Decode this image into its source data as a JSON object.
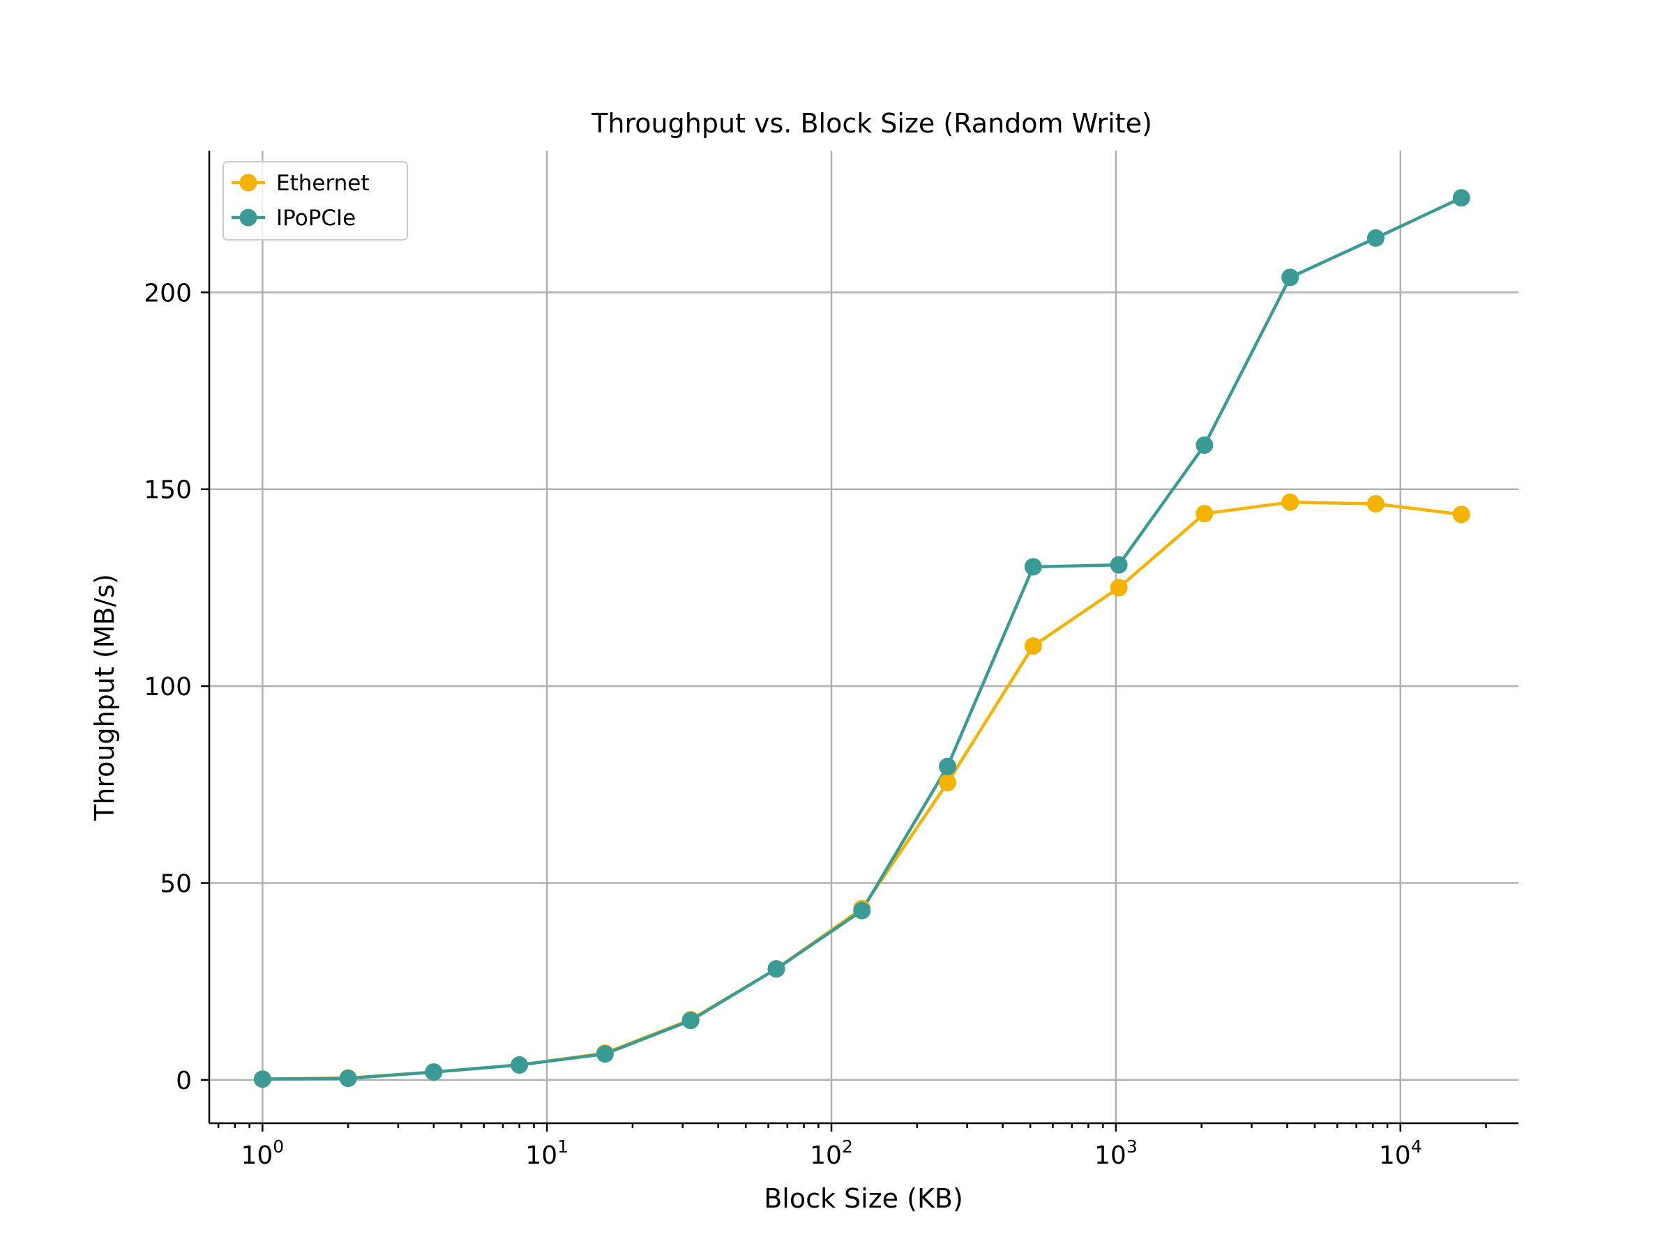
{
  "chart_data": {
    "type": "line",
    "title": "Throughput vs. Block Size (Random Write)",
    "xlabel": "Block Size (KB)",
    "ylabel": "Throughput (MB/s)",
    "xscale": "log",
    "xlim": [
      0.65,
      26000
    ],
    "ylim": [
      -11,
      236
    ],
    "x_ticks": [
      {
        "value": 1,
        "base": "10",
        "exp": "0"
      },
      {
        "value": 10,
        "base": "10",
        "exp": "1"
      },
      {
        "value": 100,
        "base": "10",
        "exp": "2"
      },
      {
        "value": 1000,
        "base": "10",
        "exp": "3"
      },
      {
        "value": 10000,
        "base": "10",
        "exp": "4"
      }
    ],
    "y_ticks": [
      {
        "value": 0,
        "label": "0"
      },
      {
        "value": 50,
        "label": "50"
      },
      {
        "value": 100,
        "label": "100"
      },
      {
        "value": 150,
        "label": "150"
      },
      {
        "value": 200,
        "label": "200"
      }
    ],
    "grid": true,
    "legend_position": "upper-left",
    "x": [
      1,
      2,
      4,
      8,
      16,
      32,
      64,
      128,
      256,
      512,
      1024,
      2048,
      4096,
      8192,
      16384
    ],
    "series": [
      {
        "name": "Ethernet",
        "color": "#f5b301",
        "values": [
          0.2,
          0.5,
          2.0,
          3.8,
          6.8,
          15.3,
          28.2,
          43.5,
          75.5,
          110.2,
          125.0,
          143.8,
          146.7,
          146.3,
          143.6
        ]
      },
      {
        "name": "IPoPCIe",
        "color": "#3a9b96",
        "values": [
          0.2,
          0.4,
          2.0,
          3.8,
          6.6,
          15.1,
          28.2,
          43.0,
          79.6,
          130.3,
          130.8,
          161.2,
          203.8,
          213.8,
          224.0
        ]
      }
    ]
  }
}
